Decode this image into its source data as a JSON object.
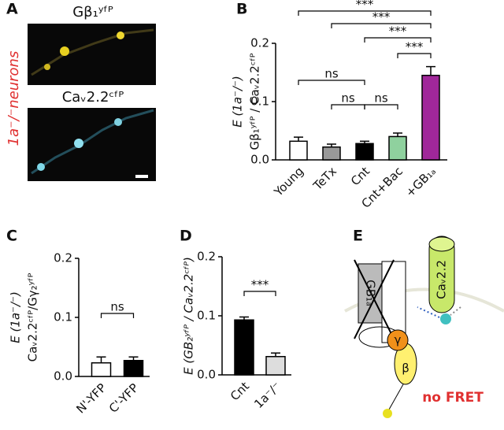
{
  "panel_labels": [
    "A",
    "B",
    "C",
    "D",
    "E"
  ],
  "panel_a": {
    "side_label": "1a⁻/⁻neurons",
    "image_labels": [
      "Gβ₁ʸᶠᴾ",
      "Caᵥ2.2ᶜᶠᴾ"
    ]
  },
  "chart_data": [
    {
      "type": "bar",
      "ylabel": [
        "E (1a⁻/⁻)",
        "Gβ₁ʸᶠᴾ / Caᵥ2.2ᶜᶠᴾ"
      ],
      "categories": [
        "Young",
        "TeTx",
        "Cnt",
        "Cnt+Bac",
        "+GB₁ₐ"
      ],
      "values": [
        0.032,
        0.022,
        0.028,
        0.04,
        0.145
      ],
      "errors": [
        0.007,
        0.005,
        0.004,
        0.006,
        0.015
      ],
      "colors": [
        "#ffffff",
        "#999999",
        "#000000",
        "#8fd19e",
        "#a0279a"
      ],
      "ylim": [
        0,
        0.2
      ],
      "yticks": [
        {
          "value": 0,
          "label": "0.0"
        },
        0.1,
        0.2
      ],
      "annotations": [
        "***",
        "***",
        "***",
        "***",
        "ns",
        "ns",
        "ns"
      ]
    },
    {
      "type": "bar",
      "ylabel": [
        "E (1a⁻/⁻)",
        "Caᵥ2.2ᶜᶠᴾ/Gγ₂ʸᶠᴾ"
      ],
      "categories": [
        "N'-YFP",
        "C'-YFP"
      ],
      "values": [
        0.023,
        0.027
      ],
      "errors": [
        0.01,
        0.006
      ],
      "colors": [
        "#ffffff",
        "#000000"
      ],
      "ylim": [
        0,
        0.2
      ],
      "yticks": [
        {
          "value": 0,
          "label": "0.0"
        },
        0.1,
        0.2
      ],
      "annotations": [
        "ns"
      ]
    },
    {
      "type": "bar",
      "ylabel": [
        "E (GB₂ʸᶠᴾ / Caᵥ2.2ᶜᶠᴾ)"
      ],
      "categories": [
        "Cnt",
        "1a⁻/⁻"
      ],
      "values": [
        0.093,
        0.031
      ],
      "errors": [
        0.005,
        0.006
      ],
      "colors": [
        "#000000",
        "#dddddd"
      ],
      "ylim": [
        0,
        0.2
      ],
      "yticks": [
        {
          "value": 0,
          "label": "0.0"
        },
        0.1,
        0.2
      ],
      "annotations": [
        "***"
      ]
    }
  ],
  "panel_e": {
    "receptor": "GB₁ₐ",
    "channel": "Caᵥ2.2",
    "gamma": "γ",
    "beta": "β",
    "note": "no FRET"
  }
}
